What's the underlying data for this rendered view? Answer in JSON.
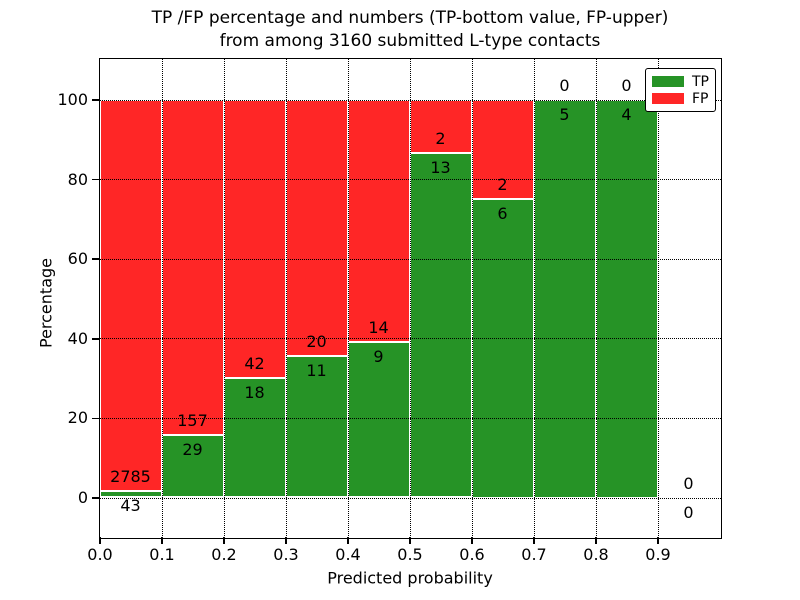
{
  "figure": {
    "title_line1": "TP /FP percentage and numbers (TP-bottom value, FP-upper)",
    "title_line2": "from among 3160 submitted L-type contacts",
    "xlabel": "Predicted probability",
    "ylabel": "Percentage"
  },
  "legend": {
    "items": [
      {
        "label": "TP",
        "color": "#269326"
      },
      {
        "label": "FP",
        "color": "#ff2626"
      }
    ]
  },
  "colors": {
    "tp_green": "#269326",
    "fp_red": "#ff2626",
    "grid": "#000000",
    "background": "#ffffff"
  },
  "chart_data": {
    "type": "bar",
    "stacked": true,
    "title": "TP /FP percentage and numbers (TP-bottom value, FP-upper) from among 3160 submitted L-type contacts",
    "xlabel": "Predicted probability",
    "ylabel": "Percentage",
    "total_contacts": 3160,
    "xlim": [
      0.0,
      1.0
    ],
    "ylim": [
      -10,
      110
    ],
    "grid": "dotted",
    "legend_position": "upper right",
    "ytick_values": [
      0,
      20,
      40,
      60,
      80,
      100
    ],
    "ytick_labels": [
      "0",
      "20",
      "40",
      "60",
      "80",
      "100"
    ],
    "xtick_values": [
      0.0,
      0.1,
      0.2,
      0.3,
      0.4,
      0.5,
      0.6,
      0.7,
      0.8,
      0.9
    ],
    "xtick_labels": [
      "0.0",
      "0.1",
      "0.2",
      "0.3",
      "0.4",
      "0.5",
      "0.6",
      "0.7",
      "0.8",
      "0.9"
    ],
    "bins": [
      {
        "range": [
          0.0,
          0.1
        ],
        "tp": 43,
        "fp": 2785,
        "tp_percent": 1.5
      },
      {
        "range": [
          0.1,
          0.2
        ],
        "tp": 29,
        "fp": 157,
        "tp_percent": 15.6
      },
      {
        "range": [
          0.2,
          0.3
        ],
        "tp": 18,
        "fp": 42,
        "tp_percent": 30.0
      },
      {
        "range": [
          0.3,
          0.4
        ],
        "tp": 11,
        "fp": 20,
        "tp_percent": 35.5
      },
      {
        "range": [
          0.4,
          0.5
        ],
        "tp": 9,
        "fp": 14,
        "tp_percent": 39.1
      },
      {
        "range": [
          0.5,
          0.6
        ],
        "tp": 13,
        "fp": 2,
        "tp_percent": 86.7
      },
      {
        "range": [
          0.6,
          0.7
        ],
        "tp": 6,
        "fp": 2,
        "tp_percent": 75.0
      },
      {
        "range": [
          0.7,
          0.8
        ],
        "tp": 5,
        "fp": 0,
        "tp_percent": 100.0
      },
      {
        "range": [
          0.8,
          0.9
        ],
        "tp": 4,
        "fp": 0,
        "tp_percent": 100.0
      },
      {
        "range": [
          0.9,
          1.0
        ],
        "tp": 0,
        "fp": 0,
        "tp_percent": null
      }
    ],
    "series": [
      {
        "name": "TP",
        "color": "#269326",
        "counts": [
          43,
          29,
          18,
          11,
          9,
          13,
          6,
          5,
          4,
          0
        ]
      },
      {
        "name": "FP",
        "color": "#ff2626",
        "counts": [
          2785,
          157,
          42,
          20,
          14,
          2,
          2,
          0,
          0,
          0
        ]
      }
    ]
  }
}
